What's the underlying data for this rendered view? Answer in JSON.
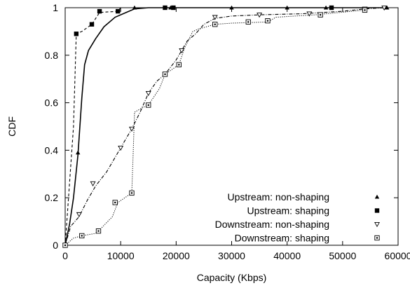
{
  "chart_data": {
    "type": "line",
    "title": "",
    "xlabel": "Capacity (Kbps)",
    "ylabel": "CDF",
    "xlim": [
      0,
      60000
    ],
    "ylim": [
      0,
      1
    ],
    "xticks": [
      "0",
      "10000",
      "20000",
      "30000",
      "40000",
      "50000",
      "60000"
    ],
    "yticks": [
      "0",
      "0.2",
      "0.4",
      "0.6",
      "0.8",
      "1"
    ],
    "grid": false,
    "legend_position": "bottom-right",
    "series": [
      {
        "name": "Upstream: non-shaping",
        "line_style": "solid",
        "marker": "filled-triangle",
        "points": [
          [
            0,
            0
          ],
          [
            800,
            0.09
          ],
          [
            1500,
            0.2
          ],
          [
            2300,
            0.38
          ],
          [
            3000,
            0.62
          ],
          [
            3500,
            0.76
          ],
          [
            4200,
            0.82
          ],
          [
            5500,
            0.87
          ],
          [
            7000,
            0.92
          ],
          [
            9000,
            0.96
          ],
          [
            11000,
            0.98
          ],
          [
            12500,
            0.995
          ],
          [
            15000,
            1.0
          ],
          [
            20000,
            1.0
          ],
          [
            30000,
            1.0
          ],
          [
            40000,
            1.0
          ],
          [
            48000,
            1.0
          ],
          [
            58000,
            1.0
          ]
        ],
        "marker_points": [
          [
            0,
            0
          ],
          [
            2300,
            0.39
          ],
          [
            12500,
            1.0
          ],
          [
            19000,
            1.0
          ],
          [
            30000,
            1.0
          ],
          [
            40000,
            1.0
          ],
          [
            47000,
            1.0
          ],
          [
            58000,
            1.0
          ]
        ]
      },
      {
        "name": "Upstream: shaping",
        "line_style": "dashed",
        "marker": "filled-square",
        "points": [
          [
            0,
            0
          ],
          [
            1500,
            0.5
          ],
          [
            2000,
            0.89
          ],
          [
            3000,
            0.9
          ],
          [
            4800,
            0.93
          ],
          [
            6200,
            0.98
          ],
          [
            9500,
            0.985
          ],
          [
            10000,
            1.0
          ],
          [
            18000,
            1.0
          ],
          [
            19500,
            1.0
          ],
          [
            48000,
            1.0
          ]
        ],
        "marker_points": [
          [
            0,
            0
          ],
          [
            2000,
            0.89
          ],
          [
            4800,
            0.93
          ],
          [
            6200,
            0.985
          ],
          [
            9500,
            0.985
          ],
          [
            18000,
            1.0
          ],
          [
            19500,
            1.0
          ],
          [
            48000,
            1.0
          ]
        ]
      },
      {
        "name": "Downstream: non-shaping",
        "line_style": "dash-dot",
        "marker": "hollow-down-triangle",
        "points": [
          [
            0,
            0
          ],
          [
            1000,
            0.08
          ],
          [
            2500,
            0.12
          ],
          [
            4000,
            0.19
          ],
          [
            5500,
            0.25
          ],
          [
            7500,
            0.31
          ],
          [
            10000,
            0.41
          ],
          [
            12000,
            0.49
          ],
          [
            13500,
            0.56
          ],
          [
            15000,
            0.64
          ],
          [
            16500,
            0.69
          ],
          [
            18000,
            0.72
          ],
          [
            20000,
            0.78
          ],
          [
            22000,
            0.86
          ],
          [
            23500,
            0.89
          ],
          [
            25000,
            0.93
          ],
          [
            27000,
            0.955
          ],
          [
            30000,
            0.965
          ],
          [
            35000,
            0.97
          ],
          [
            43000,
            0.975
          ],
          [
            50000,
            0.985
          ],
          [
            54000,
            0.995
          ],
          [
            57500,
            1.0
          ]
        ],
        "marker_points": [
          [
            0,
            0
          ],
          [
            2500,
            0.13
          ],
          [
            5000,
            0.26
          ],
          [
            10000,
            0.41
          ],
          [
            12000,
            0.49
          ],
          [
            15000,
            0.64
          ],
          [
            18000,
            0.72
          ],
          [
            21000,
            0.82
          ],
          [
            27000,
            0.96
          ],
          [
            35000,
            0.97
          ],
          [
            44000,
            0.975
          ],
          [
            54000,
            0.995
          ],
          [
            57500,
            1.0
          ]
        ]
      },
      {
        "name": "Downstream: shaping",
        "line_style": "dotted",
        "marker": "hollow-square",
        "points": [
          [
            0,
            0
          ],
          [
            1500,
            0.03
          ],
          [
            3000,
            0.04
          ],
          [
            5500,
            0.05
          ],
          [
            6000,
            0.06
          ],
          [
            8500,
            0.12
          ],
          [
            9500,
            0.18
          ],
          [
            12000,
            0.22
          ],
          [
            12200,
            0.35
          ],
          [
            12500,
            0.56
          ],
          [
            14000,
            0.58
          ],
          [
            15000,
            0.59
          ],
          [
            17000,
            0.66
          ],
          [
            18000,
            0.72
          ],
          [
            20500,
            0.76
          ],
          [
            21500,
            0.83
          ],
          [
            23000,
            0.9
          ],
          [
            24000,
            0.91
          ],
          [
            27000,
            0.93
          ],
          [
            30000,
            0.935
          ],
          [
            36500,
            0.94
          ],
          [
            38000,
            0.96
          ],
          [
            45000,
            0.97
          ],
          [
            54000,
            0.99
          ],
          [
            55000,
            1.0
          ]
        ],
        "marker_points": [
          [
            0,
            0
          ],
          [
            3000,
            0.04
          ],
          [
            6000,
            0.06
          ],
          [
            9000,
            0.18
          ],
          [
            12000,
            0.22
          ],
          [
            15000,
            0.59
          ],
          [
            18000,
            0.72
          ],
          [
            20500,
            0.76
          ],
          [
            27000,
            0.93
          ],
          [
            33000,
            0.94
          ],
          [
            36500,
            0.945
          ],
          [
            46000,
            0.97
          ],
          [
            54000,
            0.99
          ]
        ]
      }
    ]
  }
}
